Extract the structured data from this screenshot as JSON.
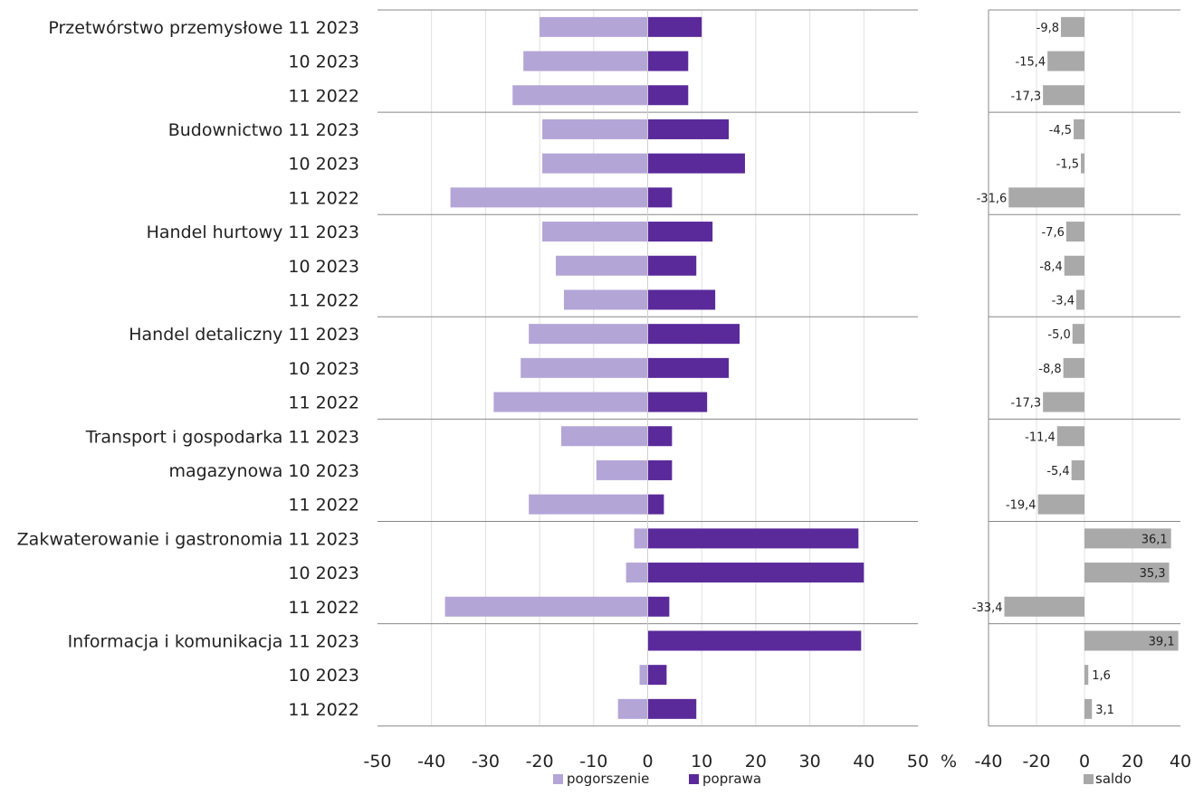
{
  "chart_data": {
    "type": "bar",
    "orientation": "horizontal",
    "unit_label": "%",
    "row_labels": [
      "Przetwórstwo przemysłowe 11 2023",
      "10 2023",
      "11 2022",
      "Budownictwo 11 2023",
      "10 2023",
      "11 2022",
      "Handel hurtowy 11 2023",
      "10 2023",
      "11 2022",
      "Handel detaliczny 11 2023",
      "10 2023",
      "11 2022",
      "Transport i gospodarka 11 2023",
      "magazynowa 10 2023",
      "11 2022",
      "Zakwaterowanie i gastronomia 11 2023",
      "10 2023",
      "11 2022",
      "Informacja i komunikacja 11 2023",
      "10 2023",
      "11 2022"
    ],
    "main_panel": {
      "xlim": [
        -50,
        50
      ],
      "x_ticks": [
        "-50",
        "-40",
        "-30",
        "-20",
        "-10",
        "0",
        "10",
        "20",
        "30",
        "40",
        "50"
      ],
      "series": [
        {
          "name": "pogorszenie",
          "color": "#b4a5d7",
          "values": [
            -20,
            -23,
            -25,
            -19.5,
            -19.5,
            -36.5,
            -19.5,
            -17,
            -15.5,
            -22,
            -23.5,
            -28.5,
            -16,
            -9.5,
            -22,
            -2.5,
            -4,
            -37.5,
            0,
            -1.5,
            -5.5
          ]
        },
        {
          "name": "poprawa",
          "color": "#5a2a9a",
          "values": [
            10,
            7.5,
            7.5,
            15,
            18,
            4.5,
            12,
            9,
            12.5,
            17,
            15,
            11,
            4.5,
            4.5,
            3,
            39,
            40,
            4,
            39.5,
            3.5,
            9
          ]
        }
      ],
      "grid": true
    },
    "saldo_panel": {
      "xlim": [
        -40,
        40
      ],
      "x_ticks": [
        "-40",
        "-20",
        "0",
        "20",
        "40"
      ],
      "series": [
        {
          "name": "saldo",
          "color": "#a9a9a9",
          "values": [
            -9.8,
            -15.4,
            -17.3,
            -4.5,
            -1.5,
            -31.6,
            -7.6,
            -8.4,
            -3.4,
            -5.0,
            -8.8,
            -17.3,
            -11.4,
            -5.4,
            -19.4,
            36.1,
            35.3,
            -33.4,
            39.1,
            1.6,
            3.1
          ]
        }
      ],
      "data_labels": [
        "-9,8",
        "-15,4",
        "-17,3",
        "-4,5",
        "-1,5",
        "-31,6",
        "-7,6",
        "-8,4",
        "-3,4",
        "-5,0",
        "-8,8",
        "-17,3",
        "-11,4",
        "-5,4",
        "-19,4",
        "36,1",
        "35,3",
        "-33,4",
        "39,1",
        "1,6",
        "3,1"
      ],
      "grid": true
    },
    "legend": {
      "position": "bottom",
      "items": [
        {
          "label": "pogorszenie",
          "color": "#b4a5d7"
        },
        {
          "label": "poprawa",
          "color": "#5a2a9a"
        },
        {
          "label": "saldo",
          "color": "#a9a9a9"
        }
      ]
    }
  }
}
